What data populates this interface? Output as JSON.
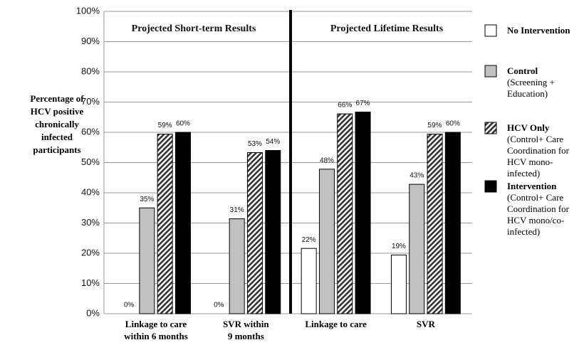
{
  "chart_data": {
    "type": "bar",
    "y_label": "Percentage of HCV positive chronically infected participants",
    "annotations": [
      "Projected Short-term Results",
      "Projected Lifetime Results"
    ],
    "categories": [
      "Linkage to care\nwithin 6 months",
      "SVR within\n9 months",
      "Linkage to care",
      "SVR"
    ],
    "series": [
      {
        "name": "No Intervention",
        "color": "#ffffff",
        "values": [
          0,
          0,
          21.6,
          19.4
        ],
        "value_labels": [
          "0%",
          "0%",
          "22%",
          "19%"
        ]
      },
      {
        "name": "Control",
        "description": "(Screening + Education)",
        "color": "#c0c0c0",
        "values": [
          35,
          31.4,
          47.8,
          42.8
        ],
        "value_labels": [
          "35%",
          "31%",
          "48%",
          "43%"
        ]
      },
      {
        "name": "HCV Only",
        "description": "(Control+ Care Coordination for HCV mono-infected)",
        "color": "#333333",
        "hatch": true,
        "values": [
          59.4,
          53.3,
          66.1,
          59.4
        ],
        "value_labels": [
          "59%",
          "53%",
          "66%",
          "59%"
        ]
      },
      {
        "name": "Intervention",
        "description": "(Control+ Care Coordination for HCV mono/co-infected)",
        "color": "#000000",
        "values": [
          60,
          54,
          66.7,
          60
        ],
        "value_labels": [
          "60%",
          "54%",
          "67%",
          "60%"
        ]
      }
    ],
    "ylim": [
      0,
      100
    ],
    "yticks": [
      {
        "value": 0,
        "label": "0%"
      },
      {
        "value": 10,
        "label": "10%"
      },
      {
        "value": 20,
        "label": "20%"
      },
      {
        "value": 30,
        "label": "30%"
      },
      {
        "value": 40,
        "label": "40%"
      },
      {
        "value": 50,
        "label": "50%"
      },
      {
        "value": 60,
        "label": "60%"
      },
      {
        "value": 70,
        "label": "70%"
      },
      {
        "value": 80,
        "label": "80%"
      },
      {
        "value": 90,
        "label": "90%"
      },
      {
        "value": 100,
        "label": "100%"
      }
    ],
    "grid": true
  }
}
